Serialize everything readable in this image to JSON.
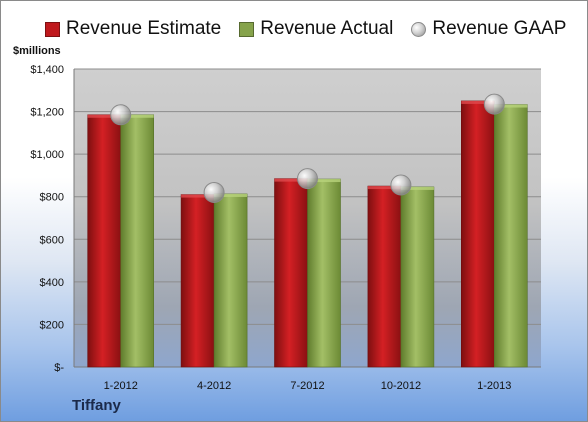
{
  "chart_data": {
    "type": "bar",
    "categories": [
      "1-2012",
      "4-2012",
      "7-2012",
      "10-2012",
      "1-2013"
    ],
    "series": [
      {
        "name": "Revenue Estimate",
        "type": "bar",
        "color": "#c0191d",
        "values": [
          1185,
          810,
          885,
          850,
          1250
        ]
      },
      {
        "name": "Revenue Actual",
        "type": "bar",
        "color": "#86a34b",
        "values": [
          1185,
          813,
          883,
          846,
          1233
        ]
      },
      {
        "name": "Revenue GAAP",
        "type": "marker",
        "color": "#b8b8b8",
        "values": [
          1185,
          820,
          885,
          855,
          1235
        ]
      }
    ],
    "ylabel": "$millions",
    "ylim": [
      0,
      1400
    ],
    "yticks": [
      0,
      200,
      400,
      600,
      800,
      1000,
      1200,
      1400
    ],
    "ytick_labels": [
      "$-",
      "$200",
      "$400",
      "$600",
      "$800",
      "$1,000",
      "$1,200",
      "$1,400"
    ],
    "grid": true,
    "legend": "top",
    "footer": "Tiffany"
  }
}
